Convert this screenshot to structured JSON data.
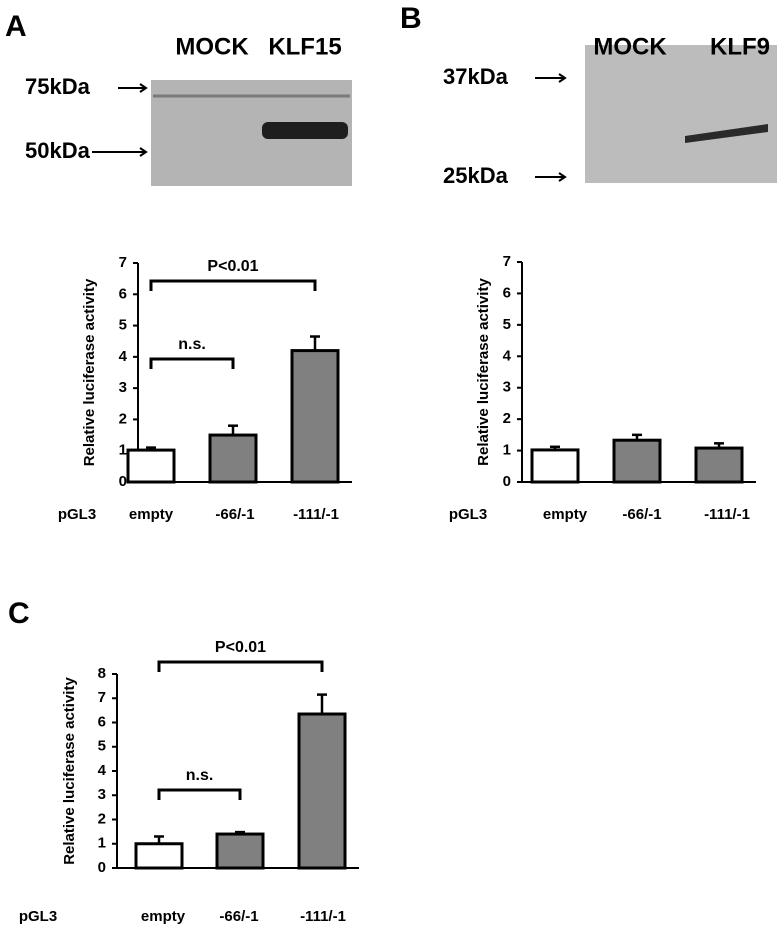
{
  "panels": [
    {
      "label": "A",
      "blot": {
        "lanes": [
          "MOCK",
          "KLF15"
        ],
        "markers": [
          "75kDa",
          "50kDa"
        ]
      }
    },
    {
      "label": "B",
      "blot": {
        "lanes": [
          "MOCK",
          "KLF9"
        ],
        "markers": [
          "37kDa",
          "25kDa"
        ]
      }
    },
    {
      "label": "C"
    }
  ],
  "chart_data": [
    {
      "type": "bar",
      "y_label": "Relative luciferase activity",
      "x_prefix": "pGL3",
      "categories": [
        "empty",
        "-66/-1",
        "-111/-1"
      ],
      "values": [
        1.02,
        1.5,
        4.2
      ],
      "errors": [
        0.08,
        0.3,
        0.45
      ],
      "colors": [
        "#ffffff",
        "#808080",
        "#808080"
      ],
      "ylim": [
        0,
        7
      ],
      "yticks": [
        0,
        1,
        2,
        3,
        4,
        5,
        6,
        7
      ],
      "annotations": [
        "P<0.01",
        "n.s."
      ]
    },
    {
      "type": "bar",
      "y_label": "Relative luciferase activity",
      "x_prefix": "pGL3",
      "categories": [
        "empty",
        "-66/-1",
        "-111/-1"
      ],
      "values": [
        1.02,
        1.33,
        1.08
      ],
      "errors": [
        0.1,
        0.17,
        0.15
      ],
      "colors": [
        "#ffffff",
        "#808080",
        "#808080"
      ],
      "ylim": [
        0,
        7
      ],
      "yticks": [
        0,
        1,
        2,
        3,
        4,
        5,
        6,
        7
      ]
    },
    {
      "type": "bar",
      "y_label": "Relative luciferase activity",
      "x_prefix": "pGL3",
      "categories": [
        "empty",
        "-66/-1",
        "-111/-1"
      ],
      "values": [
        1.0,
        1.4,
        6.35
      ],
      "errors": [
        0.3,
        0.08,
        0.8
      ],
      "colors": [
        "#ffffff",
        "#808080",
        "#808080"
      ],
      "ylim": [
        0,
        8
      ],
      "yticks": [
        0,
        1,
        2,
        3,
        4,
        5,
        6,
        7,
        8
      ],
      "annotations": [
        "P<0.01",
        "n.s."
      ]
    }
  ]
}
